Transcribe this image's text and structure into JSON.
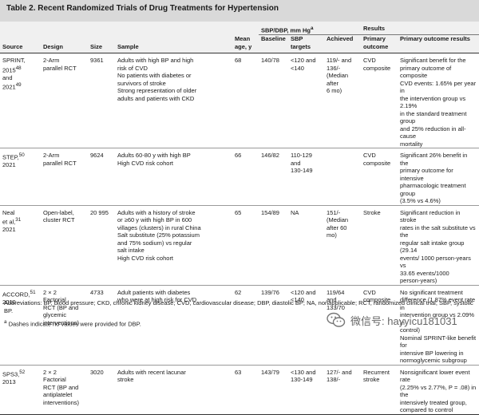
{
  "title": "Table 2. Recent Randomized Trials of Drug Treatments for Hypertension",
  "headers": {
    "source": "Source",
    "design": "Design",
    "size": "Size",
    "sample": "Sample",
    "mean_age": "Mean age, y",
    "sbp_group": "SBP/DBP, mm Hg",
    "sbp_group_mark": "a",
    "baseline": "Baseline",
    "sbp_targets": "SBP targets",
    "achieved": "Achieved",
    "results_group": "Results",
    "primary_outcome": "Primary outcome",
    "primary_outcome_results": "Primary outcome results"
  },
  "rows": [
    {
      "source": [
        "SPRINT,",
        "2015",
        "and",
        "2021"
      ],
      "source_refs": [
        "48",
        "49"
      ],
      "design": [
        "2-Arm",
        "parallel RCT"
      ],
      "size": "9361",
      "sample": [
        "Adults with high BP and high",
        "risk of CVD",
        "No patients with diabetes or",
        "survivors of stroke",
        "Strong representation of older",
        "adults and patients with CKD"
      ],
      "age": "68",
      "baseline": "140/78",
      "targets": [
        "<120 and",
        "<140"
      ],
      "achieved": [
        "119/- and",
        "136/-",
        "(Median",
        "after",
        "6 mo)"
      ],
      "outcome": [
        "CVD",
        "composite"
      ],
      "results": [
        "Significant benefit for the",
        "primary outcome of composite",
        "CVD events: 1.65% per year in",
        "the intervention group vs 2.19%",
        "in the standard treatment group",
        "and 25% reduction in all-cause",
        "mortality"
      ]
    },
    {
      "source": [
        "STEP,",
        "2021"
      ],
      "source_refs": [
        "50"
      ],
      "design": [
        "2-Arm",
        "parallel RCT"
      ],
      "size": "9624",
      "sample": [
        "Adults 60-80 y with high BP",
        "High CVD risk cohort"
      ],
      "age": "66",
      "baseline": "146/82",
      "targets": [
        "110-129",
        "and",
        "130-149"
      ],
      "achieved": [],
      "outcome": [
        "CVD",
        "composite"
      ],
      "results": [
        "Significant 26% benefit in the",
        "primary outcome for intensive",
        "pharmacologic treatment group",
        "(3.5% vs 4.6%)"
      ]
    },
    {
      "source": [
        "Neal",
        "et al,",
        "2021"
      ],
      "source_refs": [
        "31"
      ],
      "design": [
        "Open-label,",
        "cluster RCT"
      ],
      "size": "20 995",
      "sample": [
        "Adults with a history of stroke",
        "or ≥60 y with high BP in 600",
        "villages (clusters) in rural China",
        "Salt substitute (25% potassium",
        "and 75% sodium) vs regular",
        "salt intake",
        "High CVD risk cohort"
      ],
      "age": "65",
      "baseline": "154/89",
      "targets": [
        "NA"
      ],
      "achieved": [
        "151/-",
        "(Median",
        "after 60",
        "mo)"
      ],
      "outcome": [
        "Stroke"
      ],
      "results": [
        "Significant reduction in stroke",
        "rates in the salt substitute vs the",
        "regular salt intake group (29.14",
        "events/ 1000 person-years vs",
        "33.65 events/1000",
        "person-years)"
      ]
    },
    {
      "source": [
        "ACCORD,",
        "2010"
      ],
      "source_refs": [
        "51"
      ],
      "design": [
        "2 × 2",
        "Factorial",
        "RCT (BP and",
        "glycemic",
        "interventions)"
      ],
      "size": "4733",
      "sample": [
        "Adult patients with diabetes",
        "who were at high risk for CVD"
      ],
      "age": "62",
      "baseline": "139/76",
      "targets": [
        "<120 and",
        "<140"
      ],
      "achieved": [
        "119/64",
        "and",
        "133/70"
      ],
      "outcome": [
        "CVD",
        "composite"
      ],
      "results": [
        "No significant treatment",
        "difference (1.87% event rate in",
        "intervention group vs 2.09% in",
        "control)",
        "Nominal SPRINT-like benefit for",
        "intensive BP lowering in",
        "normoglycemic subgroup"
      ]
    },
    {
      "source": [
        "SPS3,",
        "2013"
      ],
      "source_refs": [
        "52"
      ],
      "design": [
        "2 × 2",
        "Factorial",
        "RCT (BP and",
        "antiplatelet",
        "interventions)"
      ],
      "size": "3020",
      "sample": [
        "Adults with recent lacunar",
        "stroke"
      ],
      "age": "63",
      "baseline": "143/79",
      "targets": [
        "<130 and",
        "130-149"
      ],
      "achieved": [
        "127/- and",
        "138/-"
      ],
      "outcome": [
        "Recurrent",
        "stroke"
      ],
      "results": [
        "Nonsignificant lower event rate",
        "(2.25% vs 2.77%, P = .08) in the",
        "intensively treated group,",
        "compared to control"
      ]
    }
  ],
  "abbreviations": "Abbreviations: BP, blood pressure; CKD, chronic kidney disease; CVD, cardiovascular disease; DBP, diastolic BP; NA, nonapplicable; RCT, randomized clinical trial; SBP, systolic BP.",
  "footnote_mark": "a",
  "footnote": "Dashes indicate no values were provided for DBP.",
  "watermark": {
    "text": "微信号: hayyicu181031",
    "icon": "wechat-logo-icon"
  }
}
